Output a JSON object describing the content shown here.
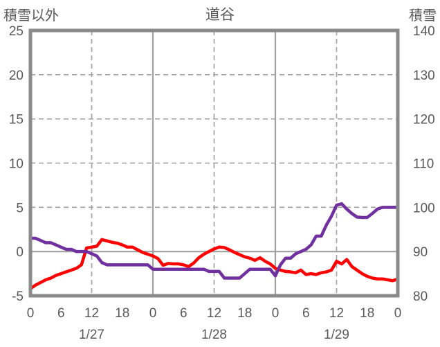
{
  "header": {
    "left_axis_title": "積雪以外",
    "chart_title": "道谷",
    "right_axis_title": "積雪"
  },
  "colors": {
    "red_series": "#fe0000",
    "purple_series": "#7030a0",
    "grid": "#a0a0a0",
    "border": "#8a8a8a",
    "text": "#595959",
    "background": "#ffffff"
  },
  "chart_data": {
    "type": "line",
    "title": "道谷",
    "legend_position": "none",
    "grid": true,
    "left_axis": {
      "title": "積雪以外",
      "min": -5,
      "max": 25,
      "ticks": [
        25,
        20,
        15,
        10,
        5,
        0,
        -5
      ]
    },
    "right_axis": {
      "title": "積雪",
      "min": 80,
      "max": 140,
      "ticks": [
        140,
        130,
        120,
        110,
        100,
        90,
        80
      ]
    },
    "x_axis": {
      "hours_total": 72,
      "tick_interval_hours": 6,
      "tick_labels": [
        "0",
        "6",
        "12",
        "18",
        "0",
        "6",
        "12",
        "18",
        "0",
        "6",
        "12",
        "18",
        "0"
      ],
      "date_labels": [
        {
          "label": "1/27",
          "hour": 12
        },
        {
          "label": "1/28",
          "hour": 36
        },
        {
          "label": "1/29",
          "hour": 60
        }
      ],
      "major_gridline_hours": [
        12,
        24,
        36,
        48,
        60
      ]
    },
    "series": [
      {
        "name": "積雪以外",
        "axis": "left",
        "color": "#fe0000",
        "start_hour": 0,
        "step_hours": 1,
        "values": [
          -4.2,
          -3.8,
          -3.5,
          -3.2,
          -3.0,
          -2.7,
          -2.5,
          -2.3,
          -2.1,
          -1.9,
          -1.5,
          0.4,
          0.5,
          0.6,
          1.35,
          1.2,
          1.05,
          0.95,
          0.75,
          0.5,
          0.5,
          0.2,
          -0.1,
          -0.3,
          -0.5,
          -0.8,
          -1.55,
          -1.35,
          -1.4,
          -1.4,
          -1.5,
          -1.7,
          -1.3,
          -0.7,
          -0.3,
          0.0,
          0.3,
          0.5,
          0.45,
          0.2,
          -0.1,
          -0.35,
          -0.6,
          -0.75,
          -1.0,
          -0.7,
          -1.1,
          -1.4,
          -1.9,
          -2.1,
          -2.25,
          -2.3,
          -2.4,
          -2.1,
          -2.6,
          -2.5,
          -2.6,
          -2.4,
          -2.3,
          -2.1,
          -1.1,
          -1.4,
          -0.9,
          -1.7,
          -2.1,
          -2.5,
          -2.8,
          -3.0,
          -3.1,
          -3.1,
          -3.2,
          -3.3,
          -3.1
        ]
      },
      {
        "name": "積雪",
        "axis": "right",
        "color": "#7030a0",
        "start_hour": 0,
        "step_hours": 1,
        "values": [
          93,
          93,
          92.5,
          92,
          92,
          91.5,
          91,
          90.5,
          90.5,
          90,
          90,
          90,
          89.5,
          89,
          87.5,
          87,
          87,
          87,
          87,
          87,
          87,
          87,
          87,
          87,
          86,
          86,
          86,
          86,
          86,
          86,
          86,
          86,
          86,
          86,
          86,
          85.5,
          85.5,
          85.5,
          84,
          84,
          84,
          84,
          85,
          86,
          86,
          86,
          86,
          86,
          84.5,
          87,
          88.5,
          88.5,
          89.5,
          90,
          90.5,
          91.5,
          93.5,
          93.5,
          96,
          98,
          100.5,
          100.8,
          99.6,
          98.6,
          97.8,
          97.7,
          97.7,
          98.6,
          99.6,
          100,
          100,
          100,
          100
        ]
      }
    ]
  }
}
